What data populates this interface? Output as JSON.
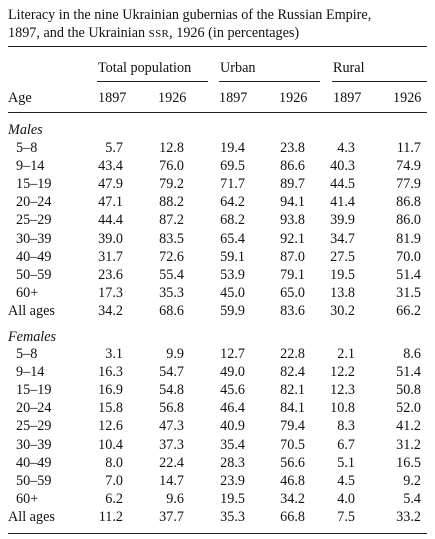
{
  "title_line1": "Literacy in the nine Ukrainian gubernias of the Russian Empire,",
  "title_line2a": "1897, and the Ukrainian ",
  "title_line2b": "SSR",
  "title_line2c": ", 1926 (in percentages)",
  "groups": {
    "total": "Total population",
    "urban": "Urban",
    "rural": "Rural"
  },
  "headers": {
    "age": "Age",
    "y1": "1897",
    "y2": "1926",
    "y3": "1897",
    "y4": "1926",
    "y5": "1897",
    "y6": "1926"
  },
  "males": {
    "label": "Males",
    "rows": [
      [
        "5–8",
        "5.7",
        "12.8",
        "19.4",
        "23.8",
        "4.3",
        "11.7"
      ],
      [
        "9–14",
        "43.4",
        "76.0",
        "69.5",
        "86.6",
        "40.3",
        "74.9"
      ],
      [
        "15–19",
        "47.9",
        "79.2",
        "71.7",
        "89.7",
        "44.5",
        "77.9"
      ],
      [
        "20–24",
        "47.1",
        "88.2",
        "64.2",
        "94.1",
        "41.4",
        "86.8"
      ],
      [
        "25–29",
        "44.4",
        "87.2",
        "68.2",
        "93.8",
        "39.9",
        "86.0"
      ],
      [
        "30–39",
        "39.0",
        "83.5",
        "65.4",
        "92.1",
        "34.7",
        "81.9"
      ],
      [
        "40–49",
        "31.7",
        "72.6",
        "59.1",
        "87.0",
        "27.5",
        "70.0"
      ],
      [
        "50–59",
        "23.6",
        "55.4",
        "53.9",
        "79.1",
        "19.5",
        "51.4"
      ],
      [
        "60+",
        "17.3",
        "35.3",
        "45.0",
        "65.0",
        "13.8",
        "31.5"
      ]
    ],
    "all": [
      "All ages",
      "34.2",
      "68.6",
      "59.9",
      "83.6",
      "30.2",
      "66.2"
    ]
  },
  "females": {
    "label": "Females",
    "rows": [
      [
        "5–8",
        "3.1",
        "9.9",
        "12.7",
        "22.8",
        "2.1",
        "8.6"
      ],
      [
        "9–14",
        "16.3",
        "54.7",
        "49.0",
        "82.4",
        "12.2",
        "51.4"
      ],
      [
        "15–19",
        "16.9",
        "54.8",
        "45.6",
        "82.1",
        "12.3",
        "50.8"
      ],
      [
        "20–24",
        "15.8",
        "56.8",
        "46.4",
        "84.1",
        "10.8",
        "52.0"
      ],
      [
        "25–29",
        "12.6",
        "47.3",
        "40.9",
        "79.4",
        "8.3",
        "41.2"
      ],
      [
        "30–39",
        "10.4",
        "37.3",
        "35.4",
        "70.5",
        "6.7",
        "31.2"
      ],
      [
        "40–49",
        "8.0",
        "22.4",
        "28.3",
        "56.6",
        "5.1",
        "16.5"
      ],
      [
        "50–59",
        "7.0",
        "14.7",
        "23.9",
        "46.8",
        "4.5",
        "9.2"
      ],
      [
        "60+",
        "6.2",
        "9.6",
        "19.5",
        "34.2",
        "4.0",
        "5.4"
      ]
    ],
    "all": [
      "All ages",
      "11.2",
      "37.7",
      "35.3",
      "66.8",
      "7.5",
      "33.2"
    ]
  }
}
